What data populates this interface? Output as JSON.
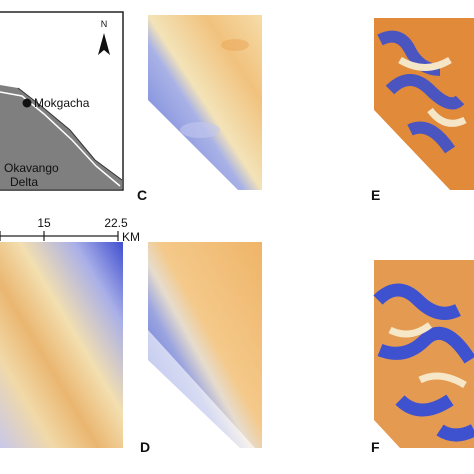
{
  "map_panel": {
    "north_label": "N",
    "place_label": "Mokgacha",
    "region_label": [
      "Okavango",
      "Delta"
    ]
  },
  "scale_bar": {
    "labels": [
      "15",
      "22.5"
    ],
    "unit": "KM"
  },
  "panel_labels": [
    "C",
    "E",
    "D",
    "F"
  ]
}
